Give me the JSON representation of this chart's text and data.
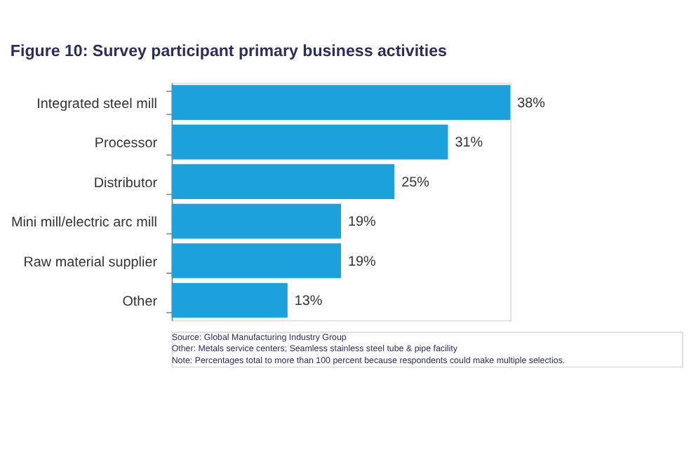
{
  "chart_data": {
    "type": "bar",
    "orientation": "horizontal",
    "title": "Figure 10: Survey participant primary business activities",
    "categories": [
      "Integrated steel mill",
      "Processor",
      "Distributor",
      "Mini mill/electric arc mill",
      "Raw material supplier",
      "Other"
    ],
    "values": [
      38,
      31,
      25,
      19,
      19,
      13
    ],
    "value_labels": [
      "38%",
      "31%",
      "25%",
      "19%",
      "19%",
      "13%"
    ],
    "color": "#1ba1db",
    "annotations": [
      "Source: Global Manufacturing Industry Group",
      "Other:  Metals service centers; Seamless stainless steel tube & pipe facility",
      "Note: Percentages total to more than 100 percent because respondents could make multiple selectios."
    ]
  }
}
